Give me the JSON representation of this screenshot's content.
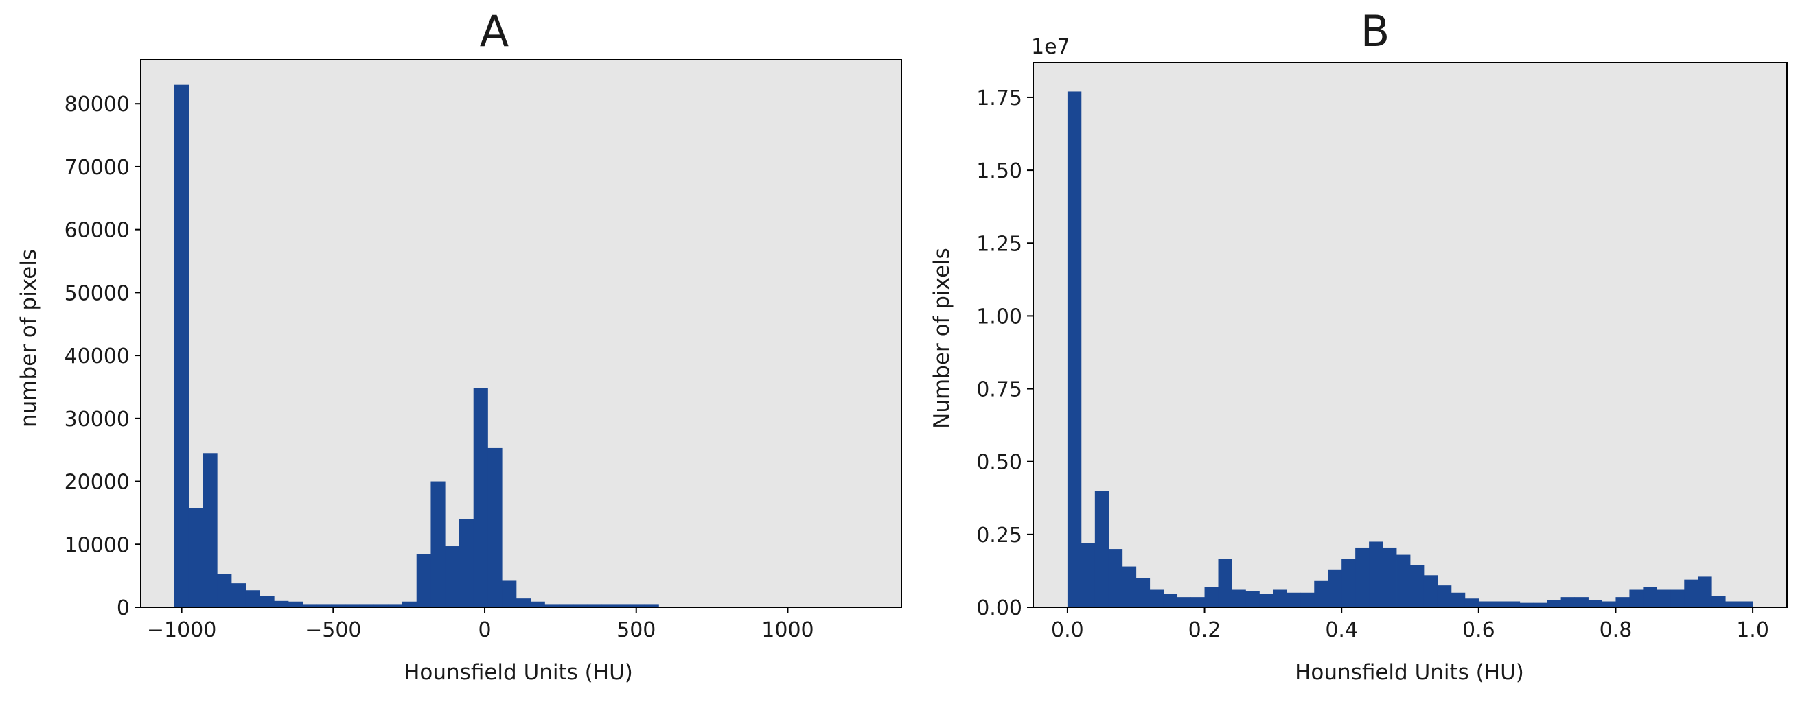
{
  "style": {
    "bar_color": "#1a4793",
    "plot_bg": "#e6e6e6",
    "axis_color": "#000000"
  },
  "chart_data": [
    {
      "id": "A",
      "type": "bar",
      "title": "A",
      "xlabel": "Hounsfield Units (HU)",
      "ylabel": "number of pixels",
      "xlim": [
        -1135,
        1375
      ],
      "ylim": [
        0,
        87000
      ],
      "xticks": [
        -1000,
        -500,
        0,
        500,
        1000
      ],
      "xtick_labels": [
        "−1000",
        "−500",
        "0",
        "500",
        "1000"
      ],
      "yticks": [
        0,
        10000,
        20000,
        30000,
        40000,
        50000,
        60000,
        70000,
        80000
      ],
      "ytick_labels": [
        "0",
        "10000",
        "20000",
        "30000",
        "40000",
        "50000",
        "60000",
        "70000",
        "80000"
      ],
      "bin_start": -1024,
      "bin_width": 47,
      "grid": false,
      "values": [
        83000,
        15700,
        24500,
        5300,
        3800,
        2700,
        1800,
        1000,
        900,
        500,
        500,
        500,
        500,
        500,
        500,
        500,
        900,
        8500,
        20000,
        9700,
        14000,
        34800,
        25300,
        4200,
        1400,
        900,
        500,
        500,
        500,
        500,
        500,
        500,
        500,
        500
      ]
    },
    {
      "id": "B",
      "type": "bar",
      "title": "B",
      "xlabel": "Hounsfield Units (HU)",
      "ylabel": "Number of pixels",
      "offset_text": "1e7",
      "xlim": [
        -0.05,
        1.05
      ],
      "ylim": [
        0,
        1.87
      ],
      "xticks": [
        0.0,
        0.2,
        0.4,
        0.6,
        0.8,
        1.0
      ],
      "xtick_labels": [
        "0.0",
        "0.2",
        "0.4",
        "0.6",
        "0.8",
        "1.0"
      ],
      "yticks": [
        0,
        0.25,
        0.5,
        0.75,
        1.0,
        1.25,
        1.5,
        1.75
      ],
      "ytick_labels": [
        "0.00",
        "0.25",
        "0.50",
        "0.75",
        "1.00",
        "1.25",
        "1.50",
        "1.75"
      ],
      "bin_start": 0.0,
      "bin_width": 0.02,
      "grid": false,
      "values": [
        1.77,
        0.22,
        0.4,
        0.2,
        0.14,
        0.1,
        0.06,
        0.045,
        0.035,
        0.035,
        0.07,
        0.165,
        0.06,
        0.055,
        0.045,
        0.06,
        0.05,
        0.05,
        0.09,
        0.13,
        0.165,
        0.205,
        0.225,
        0.205,
        0.18,
        0.145,
        0.11,
        0.075,
        0.05,
        0.03,
        0.02,
        0.02,
        0.02,
        0.015,
        0.015,
        0.025,
        0.035,
        0.035,
        0.025,
        0.02,
        0.035,
        0.06,
        0.07,
        0.06,
        0.06,
        0.095,
        0.105,
        0.04,
        0.02,
        0.02
      ]
    }
  ]
}
